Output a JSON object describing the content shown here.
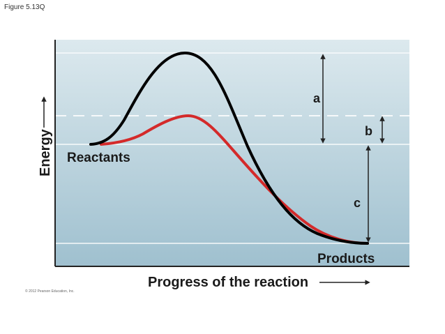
{
  "figure_label": "Figure 5.13Q",
  "copyright": "© 2012 Pearson Education, Inc.",
  "axes": {
    "y_label": "Energy",
    "x_label": "Progress of the reaction"
  },
  "labels": {
    "reactants": "Reactants",
    "products": "Products",
    "a": "a",
    "b": "b",
    "c": "c"
  },
  "curves": {
    "uncatalyzed": {
      "color": "#000000"
    },
    "catalyzed": {
      "color": "#d42a2a"
    }
  },
  "colors": {
    "panel_top": "#dce9ee",
    "panel_bottom": "#9fc0cf",
    "axis": "#222222",
    "guide": "#ffffff"
  }
}
